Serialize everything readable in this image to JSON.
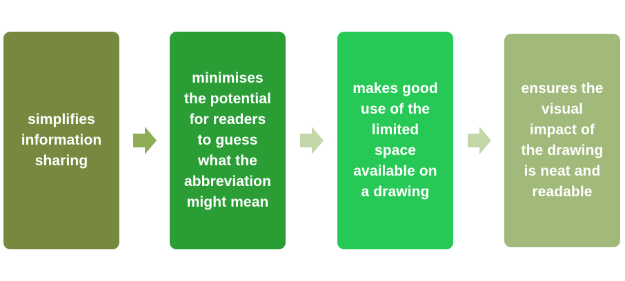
{
  "steps": [
    {
      "text": "simplifies\ninformation\nsharing",
      "color": "#76893f"
    },
    {
      "text": "minimises\nthe potential\nfor readers\nto guess\nwhat the\nabbreviation\nmight mean",
      "color": "#2a9e35"
    },
    {
      "text": "makes good\nuse of the\nlimited\nspace\navailable on\na drawing",
      "color": "#26c956"
    },
    {
      "text": "ensures the\nvisual\nimpact of\nthe drawing\nis neat and\nreadable",
      "color": "#a1b97a"
    }
  ],
  "connectors": [
    {
      "icon": "right-arrow-icon",
      "color": "#8fad55"
    },
    {
      "icon": "right-arrow-icon",
      "color": "#c3d6a7"
    },
    {
      "icon": "right-arrow-icon",
      "color": "#c3d6a7"
    }
  ]
}
